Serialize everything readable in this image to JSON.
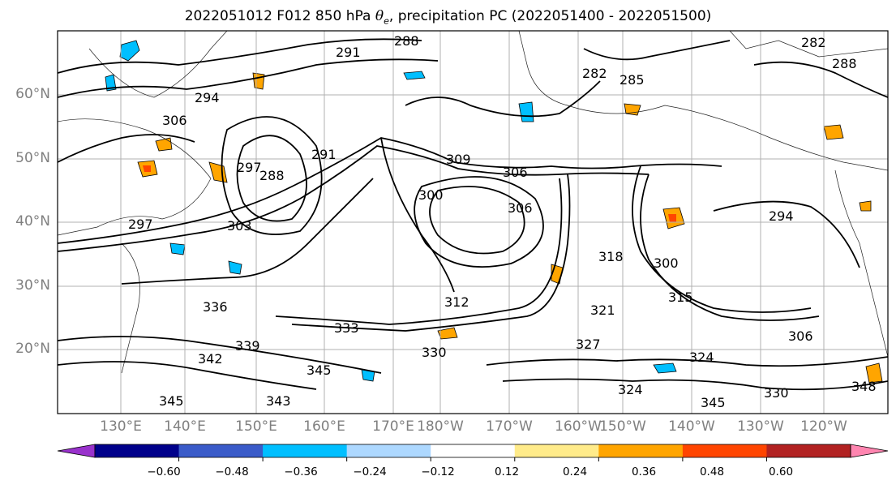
{
  "title": {
    "prefix": "2022051012 F012 850 hPa ",
    "symbol": "θ",
    "subscript": "e",
    "suffix": ", precipitation PC (2022051400 - 2022051500)"
  },
  "map": {
    "lat_labels": [
      "60°N",
      "50°N",
      "40°N",
      "30°N",
      "20°N"
    ],
    "lon_labels": [
      "130°E",
      "140°E",
      "150°E",
      "160°E",
      "170°E",
      "180°W",
      "170°W",
      "160°W",
      "150°W",
      "140°W",
      "130°W",
      "120°W"
    ],
    "contour_labels": [
      "288",
      "291",
      "282",
      "285",
      "282",
      "288",
      "294",
      "306",
      "291",
      "297",
      "288",
      "309",
      "306",
      "300",
      "306",
      "303",
      "294",
      "297",
      "300",
      "312",
      "315",
      "318",
      "321",
      "306",
      "333",
      "336",
      "339",
      "330",
      "327",
      "324",
      "342",
      "345",
      "343",
      "345",
      "348",
      "330",
      "324",
      "345"
    ]
  },
  "colorbar": {
    "colors": [
      "#9932cc",
      "#00008b",
      "#3a5bc9",
      "#00bfff",
      "#add8ff",
      "#ffffff",
      "#ffeb8a",
      "#ffa500",
      "#ff4500",
      "#b22222",
      "#ff85b0"
    ],
    "tick_labels": [
      "−0.60",
      "−0.48",
      "−0.36",
      "−0.24",
      "−0.12",
      "0.12",
      "0.24",
      "0.36",
      "0.48",
      "0.60"
    ]
  }
}
